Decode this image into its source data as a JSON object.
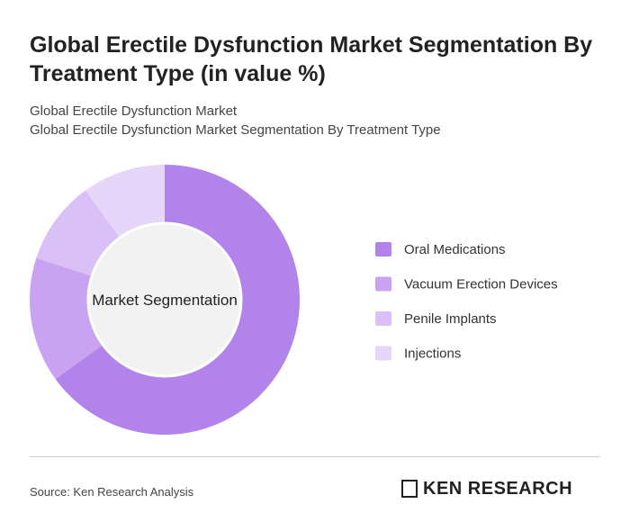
{
  "chart_data": {
    "type": "pie",
    "title": "Global Erectile Dysfunction Market Segmentation By Treatment Type (in value %)",
    "subtitle_lines": [
      "Global Erectile Dysfunction Market",
      "Global Erectile Dysfunction Market Segmentation By Treatment Type"
    ],
    "center_label": "Market Segmentation",
    "categories": [
      "Oral Medications",
      "Vacuum Erection Devices",
      "Penile Implants",
      "Injections"
    ],
    "values": [
      65,
      15,
      10,
      10
    ],
    "colors": [
      "#b383ec",
      "#c9a3f2",
      "#d9c0f6",
      "#e6d6fa"
    ],
    "legend": "right",
    "source": "Source: Ken Research Analysis",
    "logo": "KEN RESEARCH"
  }
}
